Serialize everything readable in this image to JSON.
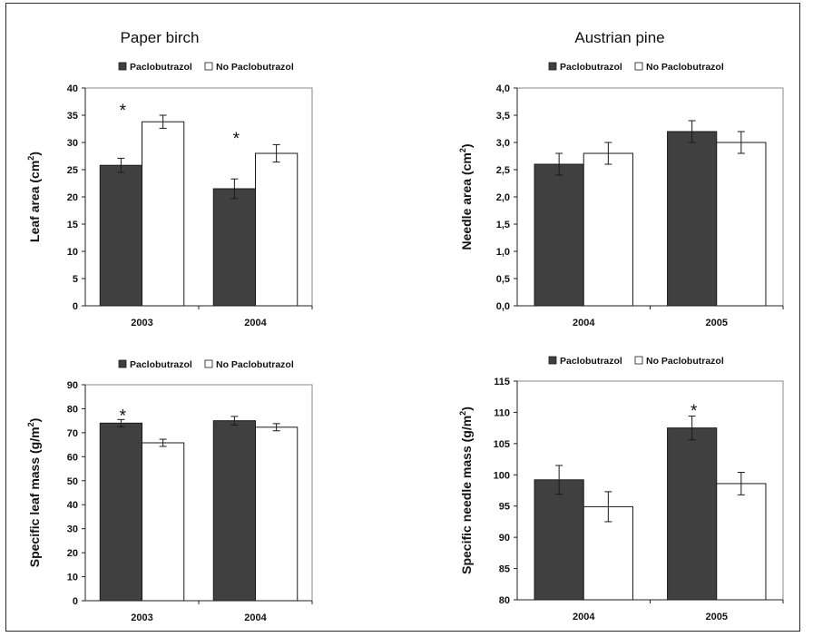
{
  "colors": {
    "treated": "#404040",
    "untreated": "#ffffff",
    "stroke": "#1a1a1a"
  },
  "legend": {
    "treated": "Paclobutrazol",
    "untreated": "No Paclobutrazol"
  },
  "column_titles": [
    "Paper birch",
    "Austrian pine"
  ],
  "chart_data": [
    {
      "type": "bar",
      "title": "Paper birch",
      "ylabel": "Leaf area (cm²)",
      "ylabel_main": "Leaf area (cm",
      "ylabel_sup": "2",
      "ylabel_tail": ")",
      "ylim": [
        0,
        40
      ],
      "yticks": [
        "0",
        "5",
        "10",
        "15",
        "20",
        "25",
        "30",
        "35",
        "40"
      ],
      "categories": [
        "2003",
        "2004"
      ],
      "series": [
        {
          "name": "Paclobutrazol",
          "values": [
            25.8,
            21.5
          ],
          "errors": [
            1.3,
            1.8
          ]
        },
        {
          "name": "No Paclobutrazol",
          "values": [
            33.8,
            28.0
          ],
          "errors": [
            1.2,
            1.6
          ]
        }
      ],
      "annotations": [
        {
          "text": "*",
          "category": "2003",
          "value": 36.5
        },
        {
          "text": "*",
          "category": "2004",
          "value": 31.3
        }
      ]
    },
    {
      "type": "bar",
      "title": "Austrian pine",
      "ylabel": "Needle area (cm²)",
      "ylabel_main": "Needle area (cm",
      "ylabel_sup": "2",
      "ylabel_tail": ")",
      "ylim": [
        0,
        4
      ],
      "yticks": [
        "0,0",
        "0,5",
        "1,0",
        "1,5",
        "2,0",
        "2,5",
        "3,0",
        "3,5",
        "4,0"
      ],
      "categories": [
        "2004",
        "2005"
      ],
      "series": [
        {
          "name": "Paclobutrazol",
          "values": [
            2.6,
            3.2
          ],
          "errors": [
            0.2,
            0.2
          ]
        },
        {
          "name": "No Paclobutrazol",
          "values": [
            2.8,
            3.0
          ],
          "errors": [
            0.2,
            0.2
          ]
        }
      ],
      "annotations": []
    },
    {
      "type": "bar",
      "title": "",
      "ylabel": "Specific leaf mass (g/m²)",
      "ylabel_main": "Specific leaf mass (g/m",
      "ylabel_sup": "2",
      "ylabel_tail": ")",
      "ylim": [
        0,
        90
      ],
      "yticks": [
        "0",
        "10",
        "20",
        "30",
        "40",
        "50",
        "60",
        "70",
        "80",
        "90"
      ],
      "categories": [
        "2003",
        "2004"
      ],
      "series": [
        {
          "name": "Paclobutrazol",
          "values": [
            74.0,
            75.0
          ],
          "errors": [
            1.5,
            1.8
          ]
        },
        {
          "name": "No Paclobutrazol",
          "values": [
            65.8,
            72.3
          ],
          "errors": [
            1.5,
            1.5
          ]
        }
      ],
      "annotations": [
        {
          "text": "*",
          "category": "2003",
          "value": 78.5
        }
      ]
    },
    {
      "type": "bar",
      "title": "",
      "ylabel": "Specific needle mass (g/m²)",
      "ylabel_main": "Specific needle mass (g/m",
      "ylabel_sup": "2",
      "ylabel_tail": ")",
      "ylim": [
        80,
        115
      ],
      "yticks": [
        "80",
        "85",
        "90",
        "95",
        "100",
        "105",
        "110",
        "115"
      ],
      "categories": [
        "2004",
        "2005"
      ],
      "series": [
        {
          "name": "Paclobutrazol",
          "values": [
            99.2,
            107.5
          ],
          "errors": [
            2.3,
            1.9
          ]
        },
        {
          "name": "No Paclobutrazol",
          "values": [
            94.9,
            98.6
          ],
          "errors": [
            2.4,
            1.8
          ]
        }
      ],
      "annotations": [
        {
          "text": "*",
          "category": "2005",
          "value": 110.8
        }
      ]
    }
  ]
}
